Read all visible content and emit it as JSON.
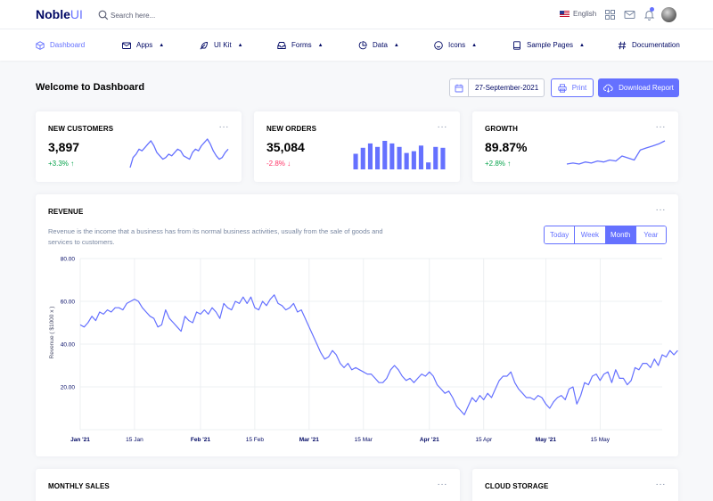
{
  "brand": {
    "name": "Noble",
    "suffix": "UI"
  },
  "search": {
    "placeholder": "Search here..."
  },
  "language": "English",
  "nav": {
    "dashboard": "Dashboard",
    "apps": "Apps",
    "ui_kit": "UI Kit",
    "forms": "Forms",
    "data": "Data",
    "icons": "Icons",
    "sample_pages": "Sample Pages",
    "documentation": "Documentation"
  },
  "page": {
    "title": "Welcome to Dashboard",
    "date": "27-September-2021",
    "print_label": "Print",
    "download_label": "Download Report"
  },
  "stats": {
    "customers": {
      "title": "NEW CUSTOMERS",
      "value": "3,897",
      "change": "+3.3%"
    },
    "orders": {
      "title": "NEW ORDERS",
      "value": "35,084",
      "change": "-2.8%"
    },
    "growth": {
      "title": "GROWTH",
      "value": "89.87%",
      "change": "+2.8%"
    }
  },
  "revenue": {
    "title": "REVENUE",
    "description": "Revenue is the income that a business has from its normal business activities, usually from the sale of goods and services to customers.",
    "ranges": [
      "Today",
      "Week",
      "Month",
      "Year"
    ],
    "active_range": "Month"
  },
  "lower_cards": {
    "monthly_sales": "MONTHLY SALES",
    "cloud_storage": "CLOUD STORAGE"
  },
  "colors": {
    "accent": "#6571ff",
    "up": "#05a34a",
    "down": "#ff3366"
  },
  "chart_data": {
    "type": "line",
    "ylabel": "Revenue ( $1000 x )",
    "ylim": [
      0,
      80
    ],
    "yticks": [
      "80.00",
      "60.00",
      "40.00",
      "20.00"
    ],
    "grid": true,
    "x_ticks": [
      {
        "label": "Jan '21",
        "day": 0
      },
      {
        "label": "15 Jan",
        "day": 14
      },
      {
        "label": "Feb '21",
        "day": 31
      },
      {
        "label": "15 Feb",
        "day": 45
      },
      {
        "label": "Mar '21",
        "day": 59
      },
      {
        "label": "15 Mar",
        "day": 73
      },
      {
        "label": "Apr '21",
        "day": 90
      },
      {
        "label": "15 Apr",
        "day": 104
      },
      {
        "label": "May '21",
        "day": 120
      },
      {
        "label": "15 May",
        "day": 134
      }
    ],
    "x_max_day": 150,
    "series": [
      {
        "values": [
          49,
          48,
          50,
          53,
          51,
          55,
          54,
          56,
          55,
          57,
          57,
          56,
          59,
          60,
          61,
          60,
          57,
          55,
          53,
          52,
          48,
          49,
          56,
          52,
          50,
          48,
          46,
          53,
          51,
          50,
          55,
          54,
          56,
          54,
          57,
          55,
          52,
          59,
          57,
          56,
          60,
          59,
          62,
          59,
          62,
          57,
          56,
          60,
          58,
          61,
          63,
          59,
          58,
          56,
          57,
          59,
          55,
          56,
          52,
          48,
          44,
          40,
          36,
          33,
          34,
          37,
          35,
          31,
          29,
          31,
          28,
          29,
          28,
          27,
          26,
          26,
          24,
          22,
          22,
          24,
          28,
          30,
          28,
          25,
          23,
          24,
          22,
          24,
          26,
          25,
          27,
          25,
          21,
          19,
          17,
          18,
          15,
          11,
          9,
          7,
          11,
          15,
          13,
          16,
          14,
          17,
          15,
          19,
          23,
          25,
          25,
          27,
          22,
          19,
          17,
          15,
          15,
          14,
          16,
          15,
          12,
          10,
          13,
          15,
          16,
          14,
          19,
          20,
          12,
          16,
          22,
          21,
          25,
          26,
          23,
          26,
          27,
          22,
          28,
          24,
          24,
          21,
          23,
          29,
          28,
          31,
          31,
          29,
          33,
          30,
          35,
          34,
          37,
          35,
          37
        ]
      }
    ]
  },
  "sparklines": {
    "customers": [
      20,
      26,
      28,
      31,
      30,
      32,
      34,
      36,
      33,
      29,
      27,
      25,
      26,
      28,
      27,
      29,
      31,
      30,
      27,
      26,
      25,
      29,
      31,
      30,
      33,
      35,
      37,
      34,
      30,
      27,
      25,
      26,
      29,
      31
    ],
    "orders": [
      36,
      50,
      60,
      52,
      66,
      60,
      52,
      38,
      42,
      55,
      16,
      52,
      50
    ],
    "growth": [
      12,
      13,
      12,
      14,
      13,
      15,
      14,
      16,
      15,
      20,
      18,
      16,
      26,
      28,
      30,
      32,
      35
    ]
  }
}
